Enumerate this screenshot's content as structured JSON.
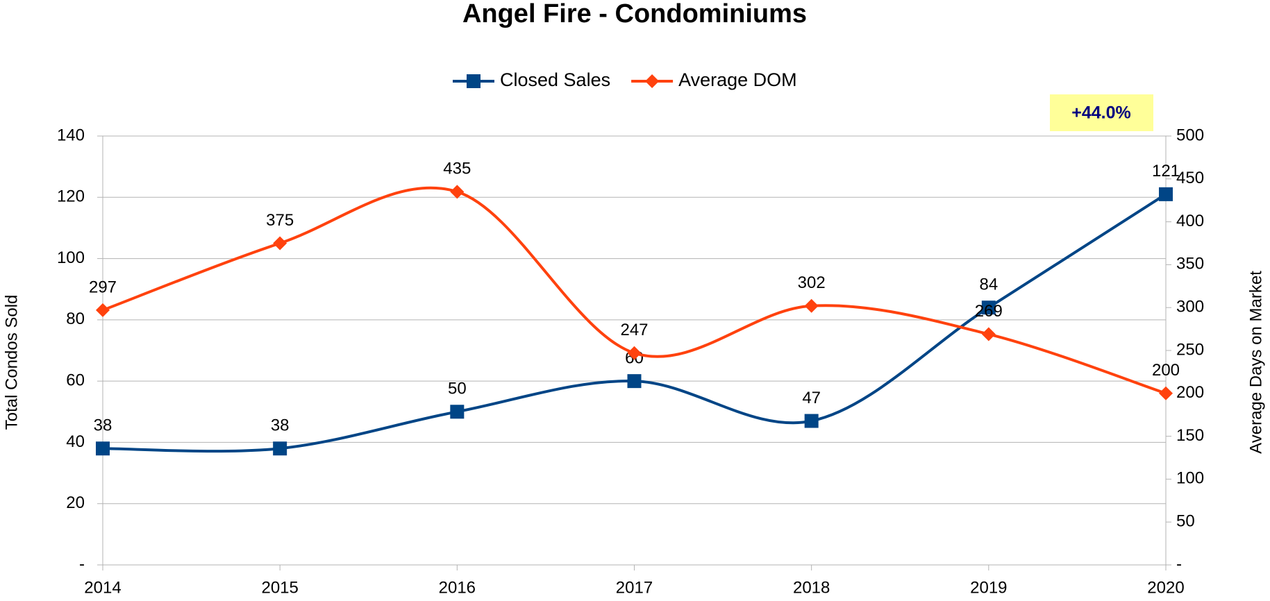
{
  "chart_data": {
    "type": "line",
    "title": "Angel Fire - Condominiums",
    "categories": [
      "2014",
      "2015",
      "2016",
      "2017",
      "2018",
      "2019",
      "2020"
    ],
    "series": [
      {
        "name": "Closed Sales",
        "color": "#004586",
        "marker": "square",
        "values": [
          38,
          38,
          50,
          60,
          47,
          84,
          121
        ]
      },
      {
        "name": "Average DOM",
        "color": "#ff420e",
        "marker": "diamond",
        "axis": "y2",
        "values": [
          297,
          375,
          435,
          247,
          302,
          269,
          200
        ]
      }
    ],
    "ylabel": "Total Condos Sold",
    "y2label": "Average Days on Market",
    "ylim": [
      0,
      140
    ],
    "yticks": [
      {
        "value": 0,
        "label": "-"
      },
      20,
      40,
      60,
      80,
      100,
      120,
      140
    ],
    "y2lim": [
      0,
      500
    ],
    "y2ticks": [
      {
        "value": 0,
        "label": "-"
      },
      50,
      100,
      150,
      200,
      250,
      300,
      350,
      400,
      450,
      500
    ],
    "annotation": "+44.0%",
    "grid": true,
    "legend": "top"
  }
}
